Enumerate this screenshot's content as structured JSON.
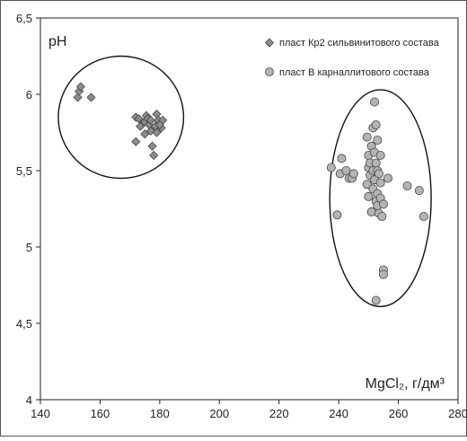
{
  "chart_data": {
    "type": "scatter",
    "title": "",
    "ylabel": "pH",
    "xlabel": "MgCl₂, г/дм³",
    "xlim": [
      140,
      280
    ],
    "ylim": [
      4,
      6.5
    ],
    "x_ticks": [
      "140",
      "160",
      "180",
      "200",
      "220",
      "240",
      "260",
      "280"
    ],
    "y_ticks": [
      "4",
      "4,5",
      "5",
      "5,5",
      "6",
      "6,5"
    ],
    "grid": false,
    "legend_position": "top-right",
    "series": [
      {
        "name": "пласт Кр2 сильвинитового состава",
        "marker": "diamond",
        "color": "#8c8c8c",
        "points": [
          [
            152.5,
            5.98
          ],
          [
            153.0,
            6.02
          ],
          [
            153.5,
            6.05
          ],
          [
            157.0,
            5.98
          ],
          [
            172.0,
            5.85
          ],
          [
            173.0,
            5.84
          ],
          [
            173.5,
            5.79
          ],
          [
            175.0,
            5.82
          ],
          [
            175.5,
            5.86
          ],
          [
            176.0,
            5.84
          ],
          [
            176.5,
            5.8
          ],
          [
            177.0,
            5.76
          ],
          [
            177.0,
            5.83
          ],
          [
            177.5,
            5.66
          ],
          [
            178.0,
            5.6
          ],
          [
            178.5,
            5.79
          ],
          [
            179.0,
            5.87
          ],
          [
            179.0,
            5.75
          ],
          [
            179.5,
            5.83
          ],
          [
            180.5,
            5.78
          ],
          [
            181.0,
            5.83
          ],
          [
            172.0,
            5.69
          ],
          [
            175.0,
            5.74
          ],
          [
            180.0,
            5.8
          ]
        ]
      },
      {
        "name": "пласт В карналлитового состава",
        "marker": "circle",
        "color": "#b4b4b4",
        "points": [
          [
            237.5,
            5.52
          ],
          [
            239.5,
            5.21
          ],
          [
            240.5,
            5.48
          ],
          [
            241.0,
            5.58
          ],
          [
            242.5,
            5.5
          ],
          [
            243.5,
            5.45
          ],
          [
            244.5,
            5.45
          ],
          [
            245.0,
            5.48
          ],
          [
            249.5,
            5.72
          ],
          [
            249.5,
            5.41
          ],
          [
            250.0,
            5.6
          ],
          [
            250.0,
            5.52
          ],
          [
            250.0,
            5.33
          ],
          [
            250.5,
            5.55
          ],
          [
            250.5,
            5.47
          ],
          [
            251.0,
            5.66
          ],
          [
            251.0,
            5.23
          ],
          [
            251.5,
            5.78
          ],
          [
            251.5,
            5.5
          ],
          [
            251.5,
            5.38
          ],
          [
            252.0,
            5.95
          ],
          [
            252.0,
            5.62
          ],
          [
            252.0,
            5.44
          ],
          [
            252.5,
            5.8
          ],
          [
            252.5,
            5.55
          ],
          [
            252.5,
            5.3
          ],
          [
            252.5,
            4.65
          ],
          [
            253.0,
            5.7
          ],
          [
            253.0,
            5.5
          ],
          [
            253.0,
            5.35
          ],
          [
            253.0,
            5.27
          ],
          [
            253.5,
            5.48
          ],
          [
            253.5,
            5.22
          ],
          [
            254.0,
            5.6
          ],
          [
            254.0,
            5.42
          ],
          [
            254.0,
            5.32
          ],
          [
            254.5,
            5.2
          ],
          [
            255.0,
            5.28
          ],
          [
            255.0,
            4.85
          ],
          [
            255.0,
            4.82
          ],
          [
            256.5,
            5.45
          ],
          [
            263.0,
            5.4
          ],
          [
            267.0,
            5.37
          ],
          [
            268.5,
            5.2
          ]
        ]
      }
    ],
    "annotations": [
      {
        "type": "ellipse",
        "cx": 167,
        "cy": 5.85,
        "rx": 21,
        "ry": 0.4
      },
      {
        "type": "ellipse",
        "cx": 254,
        "cy": 5.32,
        "rx": 17,
        "ry": 0.71
      }
    ]
  }
}
